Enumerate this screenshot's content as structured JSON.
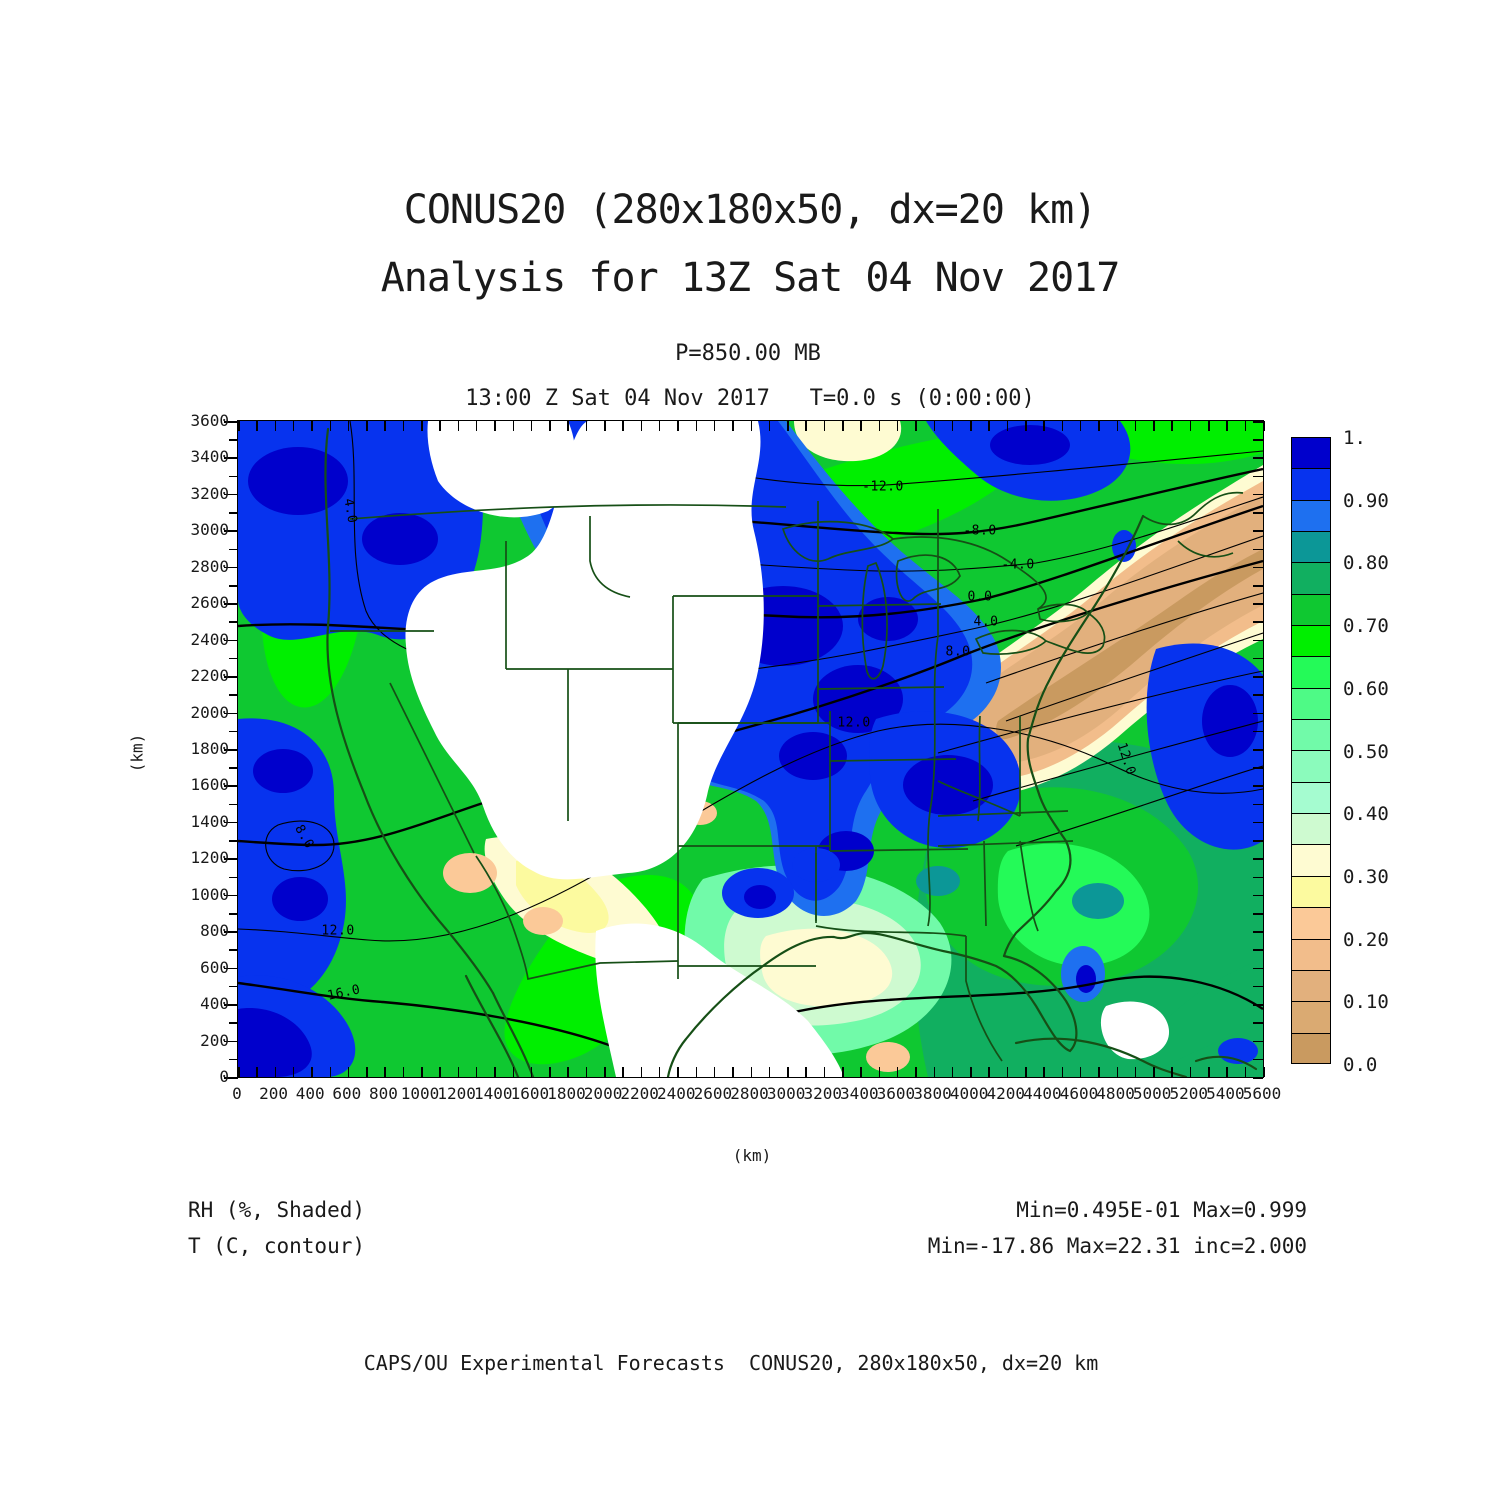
{
  "header": {
    "title_line1": "CONUS20 (280x180x50, dx=20 km)",
    "title_line2": "Analysis for 13Z Sat 04 Nov 2017",
    "level_label": "P=850.00 MB",
    "time_label": "13:00 Z Sat 04 Nov 2017   T=0.0 s (0:00:00)"
  },
  "footer": {
    "credit": "CAPS/OU Experimental Forecasts  CONUS20, 280x180x50, dx=20 km"
  },
  "legend": {
    "shaded_label": "RH (%, Shaded)",
    "contour_label": "T (C, contour)",
    "shaded_stats": "Min=0.495E-01 Max=0.999",
    "contour_stats": "Min=-17.86 Max=22.31 inc=2.000"
  },
  "chart_data": {
    "type": "heatmap",
    "subtype": "filled-contour-weather-map",
    "title": "CONUS20 (280x180x50, dx=20 km) — Analysis for 13Z Sat 04 Nov 2017",
    "pressure_level_mb": 850.0,
    "valid_time": "13:00 Z Sat 04 Nov 2017",
    "forecast_seconds": "T=0.0 s (0:00:00)",
    "xlabel": "(km)",
    "ylabel": "(km)",
    "xlim": [
      0,
      5600
    ],
    "ylim": [
      0,
      3600
    ],
    "x_ticks": [
      0,
      200,
      400,
      600,
      800,
      1000,
      1200,
      1400,
      1600,
      1800,
      2000,
      2200,
      2400,
      2600,
      2800,
      3000,
      3200,
      3400,
      3600,
      3800,
      4000,
      4200,
      4400,
      4600,
      4800,
      5000,
      5200,
      5400,
      5600
    ],
    "y_ticks": [
      0,
      200,
      400,
      600,
      800,
      1000,
      1200,
      1400,
      1600,
      1800,
      2000,
      2200,
      2400,
      2600,
      2800,
      3000,
      3200,
      3400,
      3600
    ],
    "minor_tick_step": 100,
    "grid": false,
    "shaded_field": {
      "name": "RH",
      "units": "%",
      "min": 0.0495,
      "max": 0.999
    },
    "contour_field": {
      "name": "T",
      "units": "C",
      "min": -17.86,
      "max": 22.31,
      "increment": 2.0
    },
    "colorbar": {
      "position": "right",
      "labels": [
        "1.",
        "0.90",
        "0.80",
        "0.70",
        "0.60",
        "0.50",
        "0.40",
        "0.30",
        "0.20",
        "0.10",
        "0.0"
      ],
      "cell_bounds_top_to_bottom": [
        1.0,
        0.95,
        0.9,
        0.85,
        0.8,
        0.75,
        0.7,
        0.65,
        0.6,
        0.55,
        0.5,
        0.45,
        0.4,
        0.35,
        0.3,
        0.25,
        0.2,
        0.15,
        0.1,
        0.05,
        0.0
      ],
      "colors_top_to_bottom": [
        "#0000CC",
        "#0733EE",
        "#1E70F0",
        "#0C9797",
        "#11AF60",
        "#0FC831",
        "#00EF00",
        "#24FA58",
        "#4EFA86",
        "#71FAA9",
        "#8BFBBC",
        "#A5FCD0",
        "#CEFAD0",
        "#FEFBD2",
        "#FCFA9F",
        "#FBC998",
        "#F2BD8B",
        "#E2B07D",
        "#DAAA72",
        "#C99A60"
      ]
    },
    "contour_labels": [
      {
        "text": "-12.0",
        "x": 645,
        "y": 66,
        "rot": 0
      },
      {
        "text": "-8.0",
        "x": 742,
        "y": 110,
        "rot": 0
      },
      {
        "text": "-4.0",
        "x": 780,
        "y": 144,
        "rot": 0
      },
      {
        "text": "0.0",
        "x": 742,
        "y": 176,
        "rot": 0
      },
      {
        "text": "4.0",
        "x": 748,
        "y": 201,
        "rot": 0
      },
      {
        "text": "8.0",
        "x": 720,
        "y": 231,
        "rot": 0
      },
      {
        "text": "4.0",
        "x": 112,
        "y": 90,
        "rot": 80
      },
      {
        "text": "8.0",
        "x": 66,
        "y": 416,
        "rot": 60
      },
      {
        "text": "12.0",
        "x": 616,
        "y": 302,
        "rot": 0
      },
      {
        "text": "12.0",
        "x": 100,
        "y": 510,
        "rot": 0
      },
      {
        "text": "12.0",
        "x": 888,
        "y": 338,
        "rot": 72
      },
      {
        "text": "16.0",
        "x": 106,
        "y": 572,
        "rot": -12
      }
    ],
    "map_colors": {
      "no_data": "#FFFFFF",
      "state_borders": "#164F16",
      "contour_lines": "#000000"
    }
  }
}
